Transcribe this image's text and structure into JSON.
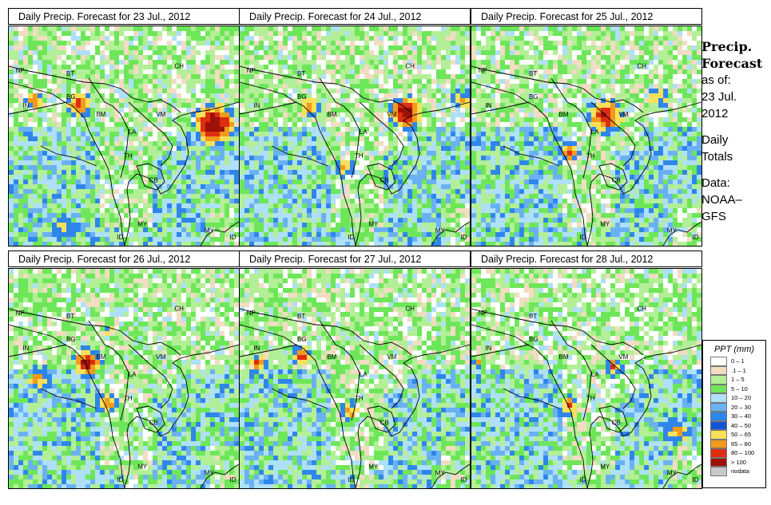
{
  "panels": [
    {
      "title": "Daily Precip. Forecast for  23 Jul., 2012",
      "seed": 11,
      "storms": [
        [
          255,
          120,
          30,
          2
        ],
        [
          85,
          95,
          18,
          1.3
        ],
        [
          28,
          90,
          14,
          1
        ],
        [
          65,
          250,
          16,
          0.6
        ]
      ]
    },
    {
      "title": "Daily Precip. Forecast for  24 Jul., 2012",
      "seed": 23,
      "storms": [
        [
          205,
          105,
          24,
          1.8
        ],
        [
          85,
          100,
          16,
          1
        ],
        [
          130,
          175,
          14,
          0.7
        ],
        [
          275,
          90,
          14,
          0.9
        ]
      ]
    },
    {
      "title": "Daily Precip. Forecast for  25 Jul., 2012",
      "seed": 37,
      "storms": [
        [
          165,
          110,
          26,
          1.4
        ],
        [
          120,
          155,
          14,
          1.1
        ],
        [
          230,
          85,
          16,
          0.8
        ]
      ]
    },
    {
      "title": "Daily Precip. Forecast for  26 Jul., 2012",
      "seed": 41,
      "storms": [
        [
          95,
          115,
          20,
          1.6
        ],
        [
          120,
          165,
          16,
          0.9
        ],
        [
          35,
          135,
          18,
          0.9
        ],
        [
          120,
          75,
          10,
          0.7
        ]
      ]
    },
    {
      "title": "Daily Precip. Forecast for  27 Jul., 2012",
      "seed": 53,
      "storms": [
        [
          20,
          115,
          12,
          1.3
        ],
        [
          75,
          105,
          14,
          1.2
        ],
        [
          135,
          175,
          14,
          0.9
        ]
      ]
    },
    {
      "title": "Daily Precip. Forecast for  28 Jul., 2012",
      "seed": 67,
      "storms": [
        [
          120,
          170,
          16,
          1
        ],
        [
          175,
          120,
          14,
          0.9
        ],
        [
          255,
          200,
          20,
          0.8
        ],
        [
          5,
          115,
          8,
          1.1
        ]
      ]
    }
  ],
  "country_labels": [
    {
      "code": "NP",
      "rx": 0.03,
      "ry": 0.21
    },
    {
      "code": "BT",
      "rx": 0.25,
      "ry": 0.225
    },
    {
      "code": "BG",
      "rx": 0.25,
      "ry": 0.33
    },
    {
      "code": "IN",
      "rx": 0.06,
      "ry": 0.37
    },
    {
      "code": "CH",
      "rx": 0.72,
      "ry": 0.19
    },
    {
      "code": "BM",
      "rx": 0.38,
      "ry": 0.41
    },
    {
      "code": "VM",
      "rx": 0.64,
      "ry": 0.41
    },
    {
      "code": "LA",
      "rx": 0.52,
      "ry": 0.49
    },
    {
      "code": "TH",
      "rx": 0.5,
      "ry": 0.6
    },
    {
      "code": "CB",
      "rx": 0.61,
      "ry": 0.71
    },
    {
      "code": "MY",
      "rx": 0.56,
      "ry": 0.91
    },
    {
      "code": "ID",
      "rx": 0.47,
      "ry": 0.97
    },
    {
      "code": "MY",
      "rx": 0.85,
      "ry": 0.94
    },
    {
      "code": "ID",
      "rx": 0.96,
      "ry": 0.97
    }
  ],
  "side_info": {
    "heading1": "Precip.",
    "heading2": "Forecast",
    "asof_label": "as of:",
    "date_line1": "23 Jul.",
    "date_line2": "2012",
    "daily": "Daily",
    "totals": "Totals",
    "data_label": "Data:",
    "source1": "NOAA–",
    "source2": "GFS"
  },
  "legend": {
    "title": "PPT (mm)",
    "bins": [
      {
        "label": "0 – 1",
        "color": "#ffffff"
      },
      {
        "label": ".1 – 1",
        "color": "#f2dcc2"
      },
      {
        "label": "1 – 5",
        "color": "#b3ef97"
      },
      {
        "label": "5 – 10",
        "color": "#6ee65a"
      },
      {
        "label": "10 – 20",
        "color": "#aee0f8"
      },
      {
        "label": "20 – 30",
        "color": "#6ab1f3"
      },
      {
        "label": "30 – 40",
        "color": "#2f86ea"
      },
      {
        "label": "40 – 50",
        "color": "#1455d4"
      },
      {
        "label": "50 – 65",
        "color": "#f8e15a"
      },
      {
        "label": "65 – 80",
        "color": "#f29a1b"
      },
      {
        "label": "80 – 100",
        "color": "#de2d10"
      },
      {
        "label": "> 100",
        "color": "#9c1008"
      },
      {
        "label": "nodata",
        "color": "#c8c8c8"
      }
    ]
  }
}
